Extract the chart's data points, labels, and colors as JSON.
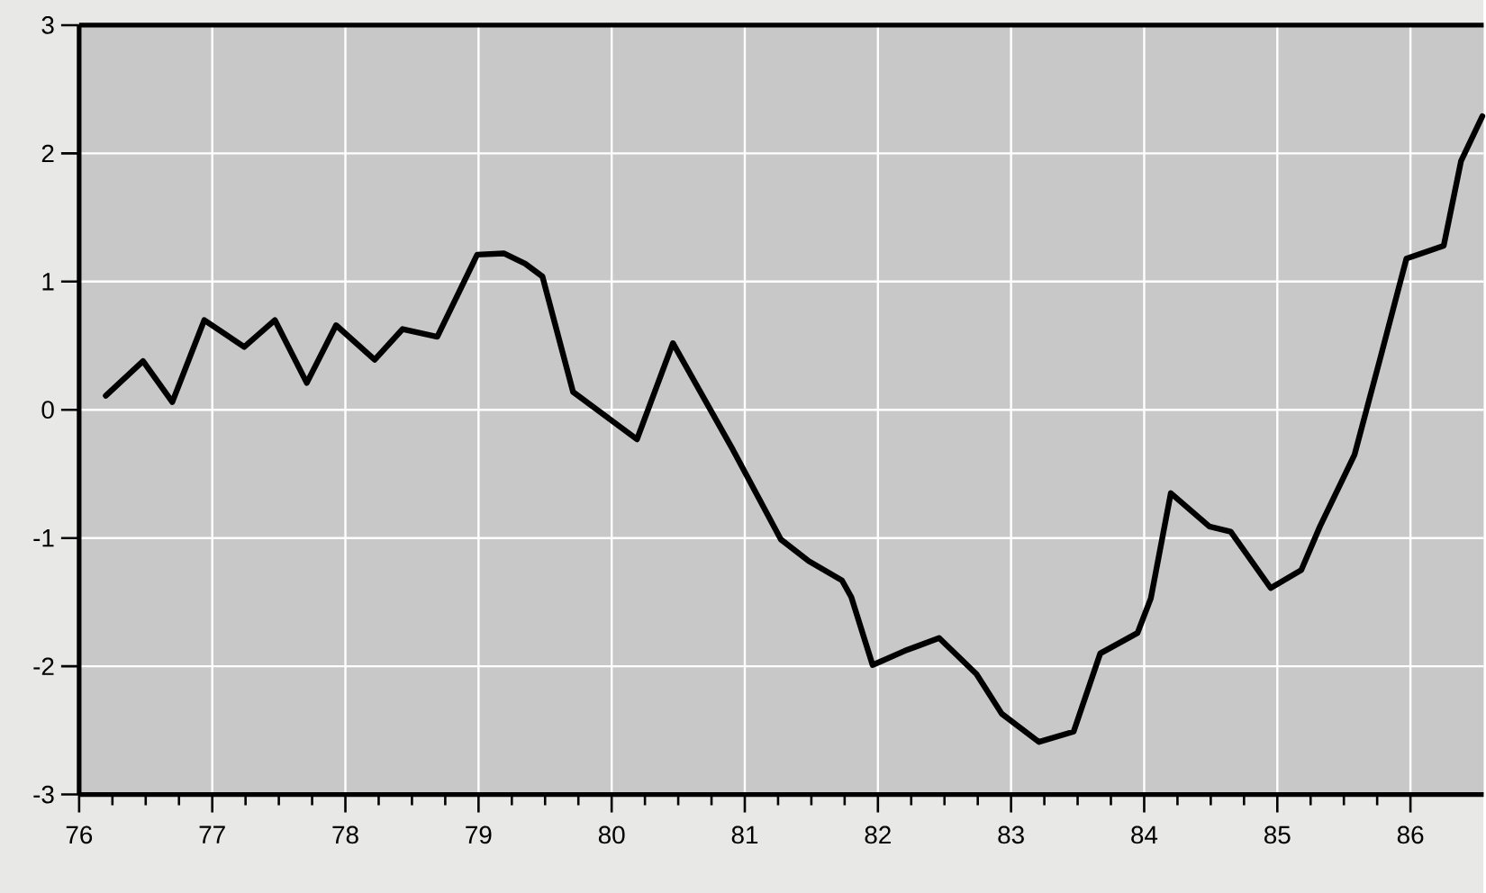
{
  "chart_data": {
    "type": "line",
    "x": [
      76.2,
      76.48,
      76.7,
      76.94,
      77.24,
      77.47,
      77.71,
      77.93,
      78.22,
      78.43,
      78.69,
      78.99,
      79.19,
      79.35,
      79.48,
      79.71,
      80.19,
      80.46,
      80.91,
      81.27,
      81.48,
      81.73,
      81.8,
      81.96,
      82.2,
      82.46,
      82.74,
      82.93,
      83.21,
      83.47,
      83.67,
      83.95,
      84.05,
      84.2,
      84.49,
      84.65,
      84.95,
      85.18,
      85.32,
      85.58,
      85.77,
      85.97,
      86.25,
      86.38,
      86.54
    ],
    "series": [
      {
        "color": "#000000",
        "values": [
          0.11,
          0.38,
          0.06,
          0.7,
          0.49,
          0.7,
          0.21,
          0.66,
          0.39,
          0.63,
          0.57,
          1.21,
          1.22,
          1.14,
          1.04,
          0.14,
          -0.23,
          0.52,
          -0.31,
          -1.01,
          -1.18,
          -1.33,
          -1.46,
          -1.99,
          -1.88,
          -1.78,
          -2.06,
          -2.37,
          -2.59,
          -2.51,
          -1.9,
          -1.74,
          -1.47,
          -0.65,
          -0.91,
          -0.95,
          -1.39,
          -1.25,
          -0.91,
          -0.35,
          0.39,
          1.18,
          1.28,
          1.94,
          2.29
        ]
      }
    ],
    "xlim": [
      76,
      86.55
    ],
    "ylim": [
      -3,
      3
    ],
    "xticks": [
      76,
      77,
      78,
      79,
      80,
      81,
      82,
      83,
      84,
      85,
      86
    ],
    "yticks": [
      -3,
      -2,
      -1,
      0,
      1,
      2,
      3
    ],
    "grid": true,
    "marker": "none",
    "line_style": "solid"
  }
}
